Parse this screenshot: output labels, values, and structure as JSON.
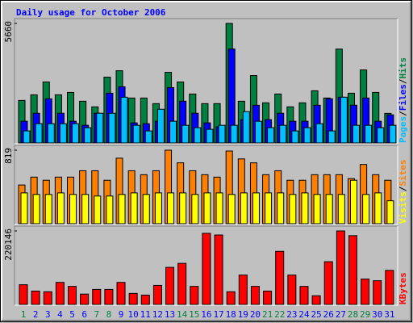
{
  "chart_data": [
    {
      "type": "bar",
      "title": "Daily usage for October 2006",
      "title_color": "#0000ff",
      "legend_separator": "/",
      "ylim": [
        0,
        5660
      ],
      "yticks": [
        5660
      ],
      "series": [
        {
          "name": "Hits",
          "color": "#008040",
          "values": [
            2013,
            2279,
            2887,
            2279,
            2393,
            1975,
            1709,
            3115,
            3419,
            2127,
            2127,
            1861,
            3343,
            2887,
            2317,
            1861,
            1861,
            5660,
            1975,
            3191,
            1899,
            2317,
            1709,
            1899,
            2469,
            2127,
            4444,
            2355,
            3457,
            2393,
            1400
          ]
        },
        {
          "name": "Files",
          "color": "#0000ff",
          "values": [
            1026,
            1406,
            2090,
            1406,
            1026,
            836,
            1406,
            2356,
            2660,
            950,
            912,
            1026,
            2622,
            1976,
            1406,
            950,
            760,
            4446,
            1102,
            1786,
            1102,
            1406,
            1026,
            1026,
            1786,
            2090,
            2166,
            1786,
            2128,
            1026,
            1330
          ]
        },
        {
          "name": "Pages",
          "color": "#00c0ff",
          "values": [
            570,
            912,
            912,
            912,
            912,
            722,
            1406,
            1406,
            2166,
            836,
            570,
            1596,
            1026,
            836,
            722,
            646,
            836,
            836,
            1482,
            1026,
            722,
            836,
            570,
            722,
            912,
            570,
            2166,
            836,
            836,
            722,
            836
          ]
        }
      ]
    },
    {
      "type": "bar",
      "legend_separator": "/",
      "ylim": [
        0,
        819
      ],
      "yticks": [
        819
      ],
      "series": [
        {
          "name": "Sites",
          "color": "#ff8000",
          "values": [
            431,
            519,
            484,
            519,
            519,
            590,
            590,
            484,
            730,
            590,
            546,
            590,
            819,
            678,
            590,
            546,
            519,
            810,
            722,
            678,
            546,
            590,
            484,
            484,
            546,
            546,
            546,
            502,
            660,
            546,
            484
          ]
        },
        {
          "name": "Visits",
          "color": "#ffff00",
          "values": [
            343,
            326,
            326,
            343,
            326,
            326,
            308,
            308,
            326,
            343,
            326,
            343,
            343,
            343,
            326,
            343,
            343,
            326,
            343,
            343,
            343,
            343,
            326,
            343,
            326,
            326,
            326,
            484,
            326,
            343,
            255
          ]
        }
      ]
    },
    {
      "type": "bar",
      "ylim": [
        0,
        220146
      ],
      "yticks": [
        220146
      ],
      "categories": [
        "1",
        "2",
        "3",
        "4",
        "5",
        "6",
        "7",
        "8",
        "9",
        "10",
        "11",
        "12",
        "13",
        "14",
        "15",
        "16",
        "17",
        "18",
        "19",
        "20",
        "21",
        "22",
        "23",
        "24",
        "25",
        "26",
        "27",
        "28",
        "29",
        "30",
        "31"
      ],
      "category_colors": [
        "#008040",
        "#0000ff",
        "#0000ff",
        "#0000ff",
        "#0000ff",
        "#0000ff",
        "#008040",
        "#008040",
        "#0000ff",
        "#0000ff",
        "#0000ff",
        "#0000ff",
        "#0000ff",
        "#008040",
        "#008040",
        "#0000ff",
        "#0000ff",
        "#0000ff",
        "#0000ff",
        "#0000ff",
        "#008040",
        "#008040",
        "#0000ff",
        "#0000ff",
        "#0000ff",
        "#0000ff",
        "#0000ff",
        "#008040",
        "#008040",
        "#0000ff",
        "#0000ff"
      ],
      "series": [
        {
          "name": "KBytes",
          "color": "#ff0000",
          "values": [
            59000,
            40000,
            38000,
            66000,
            54000,
            31000,
            45000,
            45000,
            66000,
            33000,
            28000,
            57000,
            111000,
            123000,
            54000,
            213000,
            208000,
            38000,
            88000,
            54000,
            40000,
            159000,
            88000,
            54000,
            26000,
            128000,
            220146,
            206000,
            76000,
            71000,
            102000
          ]
        }
      ]
    }
  ]
}
